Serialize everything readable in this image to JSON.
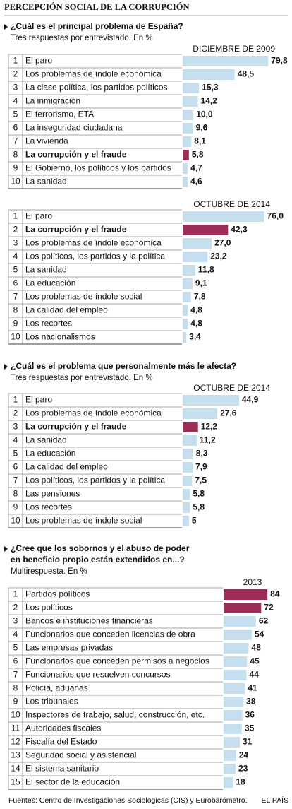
{
  "title": "PERCEPCIÓN SOCIAL DE LA CORRUPCIÓN",
  "footer": {
    "source": "Fuentes: Centro de Investigaciones Sociológicas (CIS) y Eurobarómetro.",
    "brand": "EL PAÍS"
  },
  "chart_data": [
    {
      "type": "bar",
      "question": [
        "¿Cuál es el principal problema de España?"
      ],
      "subtitle": "Tres respuestas por entrevistado. En %",
      "title": "DICIEMBRE DE 2009",
      "ranks": [
        1,
        2,
        3,
        4,
        5,
        6,
        7,
        8,
        9,
        10
      ],
      "categories": [
        "El paro",
        "Los problemas de índole económica",
        "La clase política, los partidos políticos",
        "La inmigración",
        "El terrorismo, ETA",
        "La inseguridad ciudadana",
        "La vivienda",
        "La corrupción y el fraude",
        "El Gobierno, los políticos y los partidos",
        "La sanidad"
      ],
      "values": [
        79.8,
        48.5,
        15.3,
        14.2,
        10.0,
        9.6,
        8.1,
        5.8,
        4.7,
        4.6
      ],
      "value_labels": [
        "79,8",
        "48,5",
        "15,3",
        "14,2",
        "10,0",
        "9,6",
        "8,1",
        "5,8",
        "4,7",
        "4,6"
      ],
      "colors": [
        "#c6dfee",
        "#c6dfee",
        "#c6dfee",
        "#c6dfee",
        "#c6dfee",
        "#c6dfee",
        "#c6dfee",
        "#9c2d58",
        "#c6dfee",
        "#c6dfee"
      ],
      "bold": [
        7
      ]
    },
    {
      "type": "bar",
      "title": "OCTUBRE DE 2014",
      "ranks": [
        1,
        2,
        3,
        4,
        5,
        6,
        7,
        8,
        9,
        10
      ],
      "categories": [
        "El paro",
        "La corrupción y el fraude",
        "Los problemas de índole económica",
        "Los políticos, los partidos y la política",
        "La sanidad",
        "La educación",
        "Los problemas de índole social",
        "La calidad del empleo",
        "Los recortes",
        "Los nacionalismos"
      ],
      "values": [
        76.0,
        42.3,
        27.0,
        23.2,
        11.8,
        9.1,
        7.8,
        4.8,
        4.8,
        3.4
      ],
      "value_labels": [
        "76,0",
        "42,3",
        "27,0",
        "23,2",
        "11,8",
        "9,1",
        "7,8",
        "4,8",
        "4,8",
        "3,4"
      ],
      "colors": [
        "#c6dfee",
        "#9c2d58",
        "#c6dfee",
        "#c6dfee",
        "#c6dfee",
        "#c6dfee",
        "#c6dfee",
        "#c6dfee",
        "#c6dfee",
        "#c6dfee"
      ],
      "bold": [
        1
      ]
    },
    {
      "type": "bar",
      "question": [
        "¿Cuál es el problema que personalmente más le afecta?"
      ],
      "subtitle": "Tres respuestas por entrevistado. En %",
      "title": "OCTUBRE DE 2014",
      "ranks": [
        1,
        2,
        3,
        4,
        5,
        6,
        7,
        8,
        9,
        10
      ],
      "categories": [
        "El paro",
        "Los problemas de índole económica",
        "La corrupción y el fraude",
        "La sanidad",
        "La educación",
        "La calidad del empleo",
        "Los políticos, los partidos y la política",
        "Las pensiones",
        "Los recortes",
        "Los problemas de índole social"
      ],
      "values": [
        44.9,
        27.6,
        12.2,
        11.2,
        8.3,
        7.9,
        7.5,
        5.8,
        5.8,
        5
      ],
      "value_labels": [
        "44,9",
        "27,6",
        "12,2",
        "11,2",
        "8,3",
        "7,9",
        "7,5",
        "5,8",
        "5,8",
        "5"
      ],
      "colors": [
        "#c6dfee",
        "#c6dfee",
        "#9c2d58",
        "#c6dfee",
        "#c6dfee",
        "#c6dfee",
        "#c6dfee",
        "#c6dfee",
        "#c6dfee",
        "#c6dfee"
      ],
      "bold": [
        2
      ]
    },
    {
      "type": "bar",
      "question": [
        "¿Cree que los sobornos y el abuso de poder",
        "en beneficio propio están extendidos en...?"
      ],
      "subtitle": "Multirespuesta. En %",
      "title": "2013",
      "ranks": [
        1,
        2,
        3,
        4,
        5,
        6,
        7,
        8,
        9,
        10,
        11,
        12,
        13,
        14,
        15
      ],
      "categories": [
        "Partidos políticos",
        "Los políticos",
        "Bancos e instituciones financieras",
        "Funcionarios que conceden licencias de obra",
        "Las empresas privadas",
        "Funcionarios que conceden permisos a negocios",
        "Funcionarios que resuelven concursos",
        "Policía, aduanas",
        "Los tribunales",
        "Inspectores de trabajo, salud, construcción, etc.",
        "Autoridades fiscales",
        "Fiscalía del Estado",
        "Seguridad social y asistencial",
        "El sistema sanitario",
        "El sector de la educación"
      ],
      "values": [
        84,
        72,
        62,
        54,
        48,
        45,
        44,
        41,
        38,
        36,
        35,
        31,
        24,
        23,
        18
      ],
      "colors": [
        "#9c2d58",
        "#9c2d58",
        "#c6dfee",
        "#c6dfee",
        "#c6dfee",
        "#c6dfee",
        "#c6dfee",
        "#c6dfee",
        "#c6dfee",
        "#c6dfee",
        "#c6dfee",
        "#c6dfee",
        "#c6dfee",
        "#c6dfee",
        "#c6dfee"
      ]
    }
  ]
}
